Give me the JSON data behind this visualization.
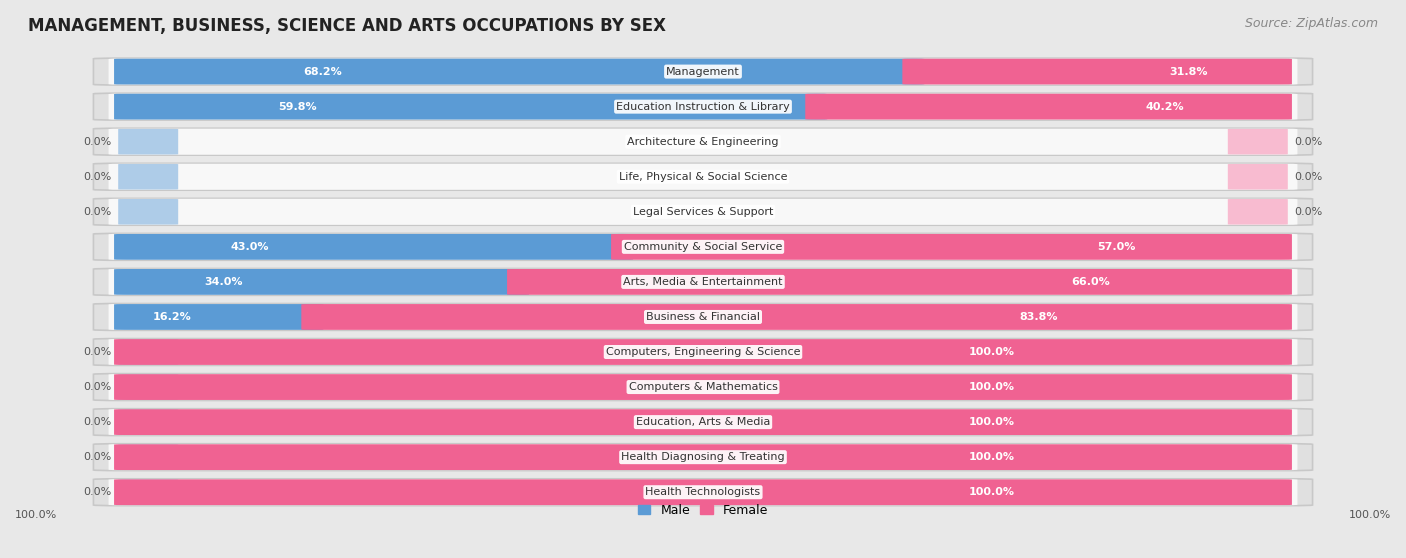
{
  "title": "MANAGEMENT, BUSINESS, SCIENCE AND ARTS OCCUPATIONS BY SEX",
  "source": "Source: ZipAtlas.com",
  "categories": [
    "Management",
    "Education Instruction & Library",
    "Architecture & Engineering",
    "Life, Physical & Social Science",
    "Legal Services & Support",
    "Community & Social Service",
    "Arts, Media & Entertainment",
    "Business & Financial",
    "Computers, Engineering & Science",
    "Computers & Mathematics",
    "Education, Arts & Media",
    "Health Diagnosing & Treating",
    "Health Technologists"
  ],
  "male_pct": [
    68.2,
    59.8,
    0.0,
    0.0,
    0.0,
    43.0,
    34.0,
    16.2,
    0.0,
    0.0,
    0.0,
    0.0,
    0.0
  ],
  "female_pct": [
    31.8,
    40.2,
    0.0,
    0.0,
    0.0,
    57.0,
    66.0,
    83.8,
    100.0,
    100.0,
    100.0,
    100.0,
    100.0
  ],
  "male_color_solid": "#5b9bd5",
  "male_color_light": "#aecce8",
  "female_color_solid": "#f06292",
  "female_color_light": "#f8bbd0",
  "male_label": "Male",
  "female_label": "Female",
  "bg_color": "#e8e8e8",
  "bar_bg_color": "#dcdcdc",
  "bar_inner_bg": "#f5f5f5",
  "title_fontsize": 12,
  "source_fontsize": 9,
  "legend_fontsize": 9,
  "label_fontsize": 8,
  "bar_height": 0.72,
  "bottom_labels": [
    "100.0%",
    "100.0%"
  ]
}
